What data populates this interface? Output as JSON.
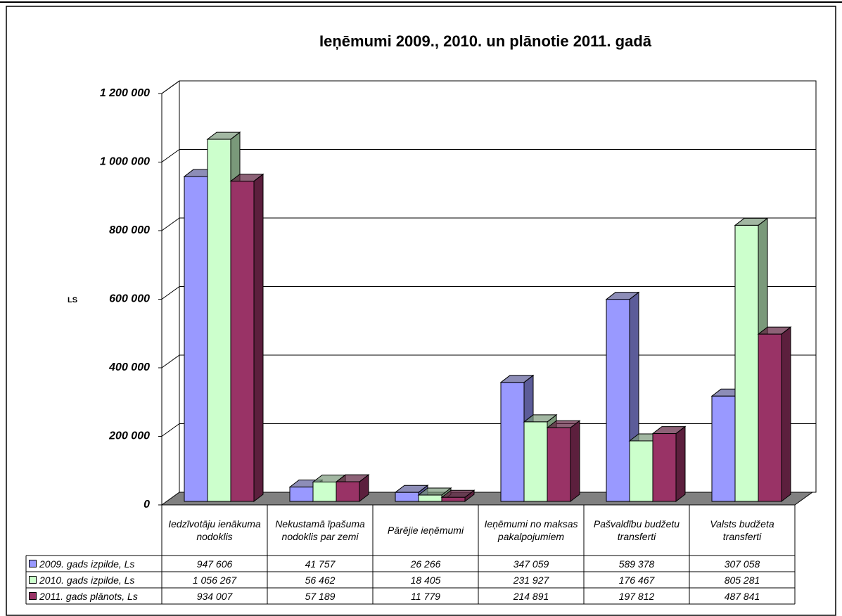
{
  "chart_data": {
    "type": "bar3d",
    "title": "Ieņēmumi 2009., 2010. un plānotie 2011. gadā",
    "y_label": "LS",
    "categories": [
      "Iedzīvotāju ienākuma nodoklis",
      "Nekustamā īpašuma nodoklis par zemi",
      "Pārējie ieņēmumi",
      "Ieņēmumi no maksas pakalpojumiem",
      "Pašvaldību budžetu transferti",
      "Valsts budžeta transferti"
    ],
    "series": [
      {
        "name": "2009. gads izpilde, Ls",
        "color": "#9999ff",
        "side": "#5c5c99",
        "values": [
          947606,
          41757,
          26266,
          347059,
          589378,
          307058
        ],
        "value_labels": [
          "947 606",
          "41 757",
          "26 266",
          "347 059",
          "589 378",
          "307 058"
        ]
      },
      {
        "name": "2010. gads izpilde, Ls",
        "color": "#ccffcc",
        "side": "#7a997a",
        "values": [
          1056267,
          56462,
          18405,
          231927,
          176467,
          805281
        ],
        "value_labels": [
          "1 056 267",
          "56 462",
          "18 405",
          "231 927",
          "176 467",
          "805 281"
        ]
      },
      {
        "name": "2011. gads plānots, Ls",
        "color": "#993366",
        "side": "#5c1f3d",
        "values": [
          934007,
          57189,
          11779,
          214891,
          197812,
          487841
        ],
        "value_labels": [
          "934 007",
          "57 189",
          "11 779",
          "214 891",
          "197 812",
          "487 841"
        ]
      }
    ],
    "ylim": [
      0,
      1200000
    ],
    "yticks": [
      0,
      {
        "value": 200000,
        "label": "200 000"
      },
      {
        "value": 400000,
        "label": "400 000"
      },
      {
        "value": 600000,
        "label": "600 000"
      },
      {
        "value": 800000,
        "label": "800 000"
      },
      {
        "value": 1000000,
        "label": "1 000 000"
      },
      {
        "value": 1200000,
        "label": "1 200 000"
      }
    ],
    "grid": true
  }
}
